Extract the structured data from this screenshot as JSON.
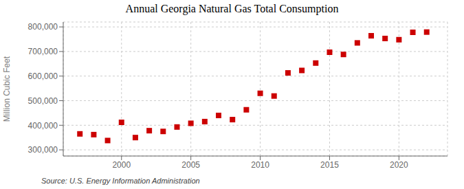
{
  "chart_data": {
    "type": "scatter",
    "title": "Annual Georgia Natural Gas Total Consumption",
    "ylabel": "Million Cubic Feet",
    "annotation": "Source: U.S. Energy Information Administration",
    "x": [
      1997,
      1998,
      1999,
      2000,
      2001,
      2002,
      2003,
      2004,
      2005,
      2006,
      2007,
      2008,
      2009,
      2010,
      2011,
      2012,
      2013,
      2014,
      2015,
      2016,
      2017,
      2018,
      2019,
      2020,
      2021,
      2022
    ],
    "values": [
      365000,
      362000,
      338000,
      412000,
      350000,
      378000,
      375000,
      393000,
      408000,
      415000,
      440000,
      423000,
      463000,
      530000,
      519000,
      613000,
      623000,
      653000,
      697000,
      688000,
      735000,
      764000,
      753000,
      748000,
      778000,
      779000
    ],
    "color": "#cc0000",
    "marker": "square",
    "xlim": [
      1995.8,
      2023.5
    ],
    "xticks": [
      2000,
      2005,
      2010,
      2015,
      2020
    ],
    "ylim": [
      275000,
      820000
    ],
    "yticks": [
      {
        "value": 300000,
        "label": "300,000"
      },
      {
        "value": 400000,
        "label": "400,000"
      },
      {
        "value": 500000,
        "label": "500,000"
      },
      {
        "value": 600000,
        "label": "600,000"
      },
      {
        "value": 700000,
        "label": "700,000"
      },
      {
        "value": 800000,
        "label": "800,000"
      }
    ],
    "grid": true
  }
}
